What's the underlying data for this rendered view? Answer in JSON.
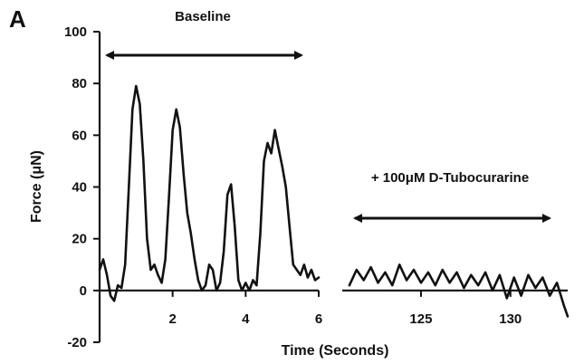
{
  "chart_data": {
    "type": "line",
    "panel_label": "A",
    "title": "",
    "xlabel": "Time (Seconds)",
    "ylabel": "Force (μN)",
    "ylim": [
      -20,
      100
    ],
    "y_ticks": [
      -20,
      0,
      20,
      40,
      60,
      80,
      100
    ],
    "grid": false,
    "segments": [
      {
        "x_ticks": [
          2,
          4,
          6
        ],
        "xlim": [
          0,
          6
        ],
        "annotation": "Baseline",
        "points": [
          [
            0.0,
            8
          ],
          [
            0.1,
            12
          ],
          [
            0.2,
            6
          ],
          [
            0.3,
            -2
          ],
          [
            0.4,
            -4
          ],
          [
            0.5,
            2
          ],
          [
            0.6,
            1
          ],
          [
            0.7,
            10
          ],
          [
            0.8,
            40
          ],
          [
            0.9,
            70
          ],
          [
            1.0,
            79
          ],
          [
            1.1,
            72
          ],
          [
            1.2,
            50
          ],
          [
            1.3,
            20
          ],
          [
            1.4,
            8
          ],
          [
            1.5,
            10
          ],
          [
            1.6,
            6
          ],
          [
            1.7,
            3
          ],
          [
            1.8,
            12
          ],
          [
            1.9,
            36
          ],
          [
            2.0,
            62
          ],
          [
            2.1,
            70
          ],
          [
            2.2,
            63
          ],
          [
            2.3,
            45
          ],
          [
            2.4,
            30
          ],
          [
            2.5,
            22
          ],
          [
            2.6,
            12
          ],
          [
            2.7,
            4
          ],
          [
            2.8,
            0
          ],
          [
            2.9,
            2
          ],
          [
            3.0,
            10
          ],
          [
            3.1,
            8
          ],
          [
            3.2,
            0
          ],
          [
            3.3,
            3
          ],
          [
            3.4,
            15
          ],
          [
            3.5,
            37
          ],
          [
            3.6,
            41
          ],
          [
            3.7,
            25
          ],
          [
            3.8,
            4
          ],
          [
            3.9,
            0
          ],
          [
            4.0,
            3
          ],
          [
            4.1,
            0
          ],
          [
            4.2,
            4
          ],
          [
            4.3,
            2
          ],
          [
            4.4,
            22
          ],
          [
            4.5,
            50
          ],
          [
            4.6,
            57
          ],
          [
            4.7,
            53
          ],
          [
            4.8,
            62
          ],
          [
            4.9,
            55
          ],
          [
            5.0,
            48
          ],
          [
            5.1,
            40
          ],
          [
            5.2,
            25
          ],
          [
            5.3,
            10
          ],
          [
            5.4,
            8
          ],
          [
            5.5,
            6
          ],
          [
            5.6,
            10
          ],
          [
            5.7,
            5
          ],
          [
            5.8,
            8
          ],
          [
            5.9,
            4
          ],
          [
            6.0,
            5
          ]
        ]
      },
      {
        "x_ticks": [
          125,
          130
        ],
        "xlim": [
          120.6,
          133.2
        ],
        "annotation": "+ 100μM D-Tubocurarine",
        "points": [
          [
            121.0,
            2
          ],
          [
            121.4,
            8
          ],
          [
            121.8,
            4
          ],
          [
            122.2,
            9
          ],
          [
            122.6,
            3
          ],
          [
            123.0,
            7
          ],
          [
            123.4,
            2
          ],
          [
            123.8,
            10
          ],
          [
            124.2,
            4
          ],
          [
            124.6,
            8
          ],
          [
            125.0,
            3
          ],
          [
            125.4,
            7
          ],
          [
            125.8,
            2
          ],
          [
            126.2,
            8
          ],
          [
            126.6,
            3
          ],
          [
            127.0,
            7
          ],
          [
            127.4,
            1
          ],
          [
            127.8,
            6
          ],
          [
            128.2,
            2
          ],
          [
            128.6,
            7
          ],
          [
            129.0,
            0
          ],
          [
            129.4,
            6
          ],
          [
            129.8,
            -3
          ],
          [
            130.2,
            5
          ],
          [
            130.6,
            -2
          ],
          [
            131.0,
            6
          ],
          [
            131.4,
            1
          ],
          [
            131.8,
            5
          ],
          [
            132.2,
            -2
          ],
          [
            132.6,
            3
          ],
          [
            133.0,
            -6
          ],
          [
            133.2,
            -10
          ]
        ]
      }
    ]
  }
}
